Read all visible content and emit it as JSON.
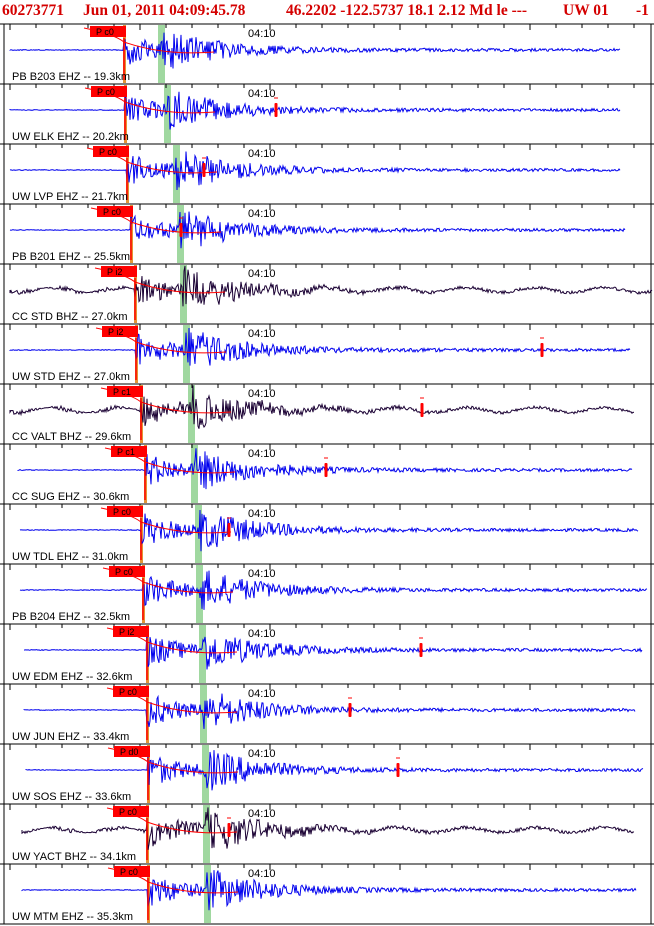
{
  "header": {
    "event_id": "60273771",
    "datetime": "Jun 01, 2011 04:09:45.78",
    "location": "46.2202 -122.5737 18.1 2.12 Md le ---",
    "network": "UW 01",
    "suffix": "-1"
  },
  "time_tick_label": "04:10",
  "colors": {
    "trace_blue": "#0000ee",
    "trace_dark": "#1a0033",
    "header_red": "#d40000",
    "pick_red": "#ff0000",
    "s_window_green": "#8fd18f",
    "p_window_orange": "#e08a1e"
  },
  "chart_data": {
    "type": "line",
    "title": "60273771 Jun 01, 2011 04:09:45.78 46.2202 -122.5737 18.1 2.12 Md le --- UW 01 -1",
    "xlabel": "",
    "ylabel": "",
    "series": [
      {
        "label": "PB B203 EHZ -- 19.3km",
        "pick": "P c0",
        "color": "blue"
      },
      {
        "label": "UW ELK EHZ -- 20.2km",
        "pick": "P c0",
        "color": "blue"
      },
      {
        "label": "UW LVP EHZ -- 21.7km",
        "pick": "P c0",
        "color": "blue"
      },
      {
        "label": "PB B201 EHZ -- 25.5km",
        "pick": "P c0",
        "color": "blue"
      },
      {
        "label": "CC STD BHZ -- 27.0km",
        "pick": "P i2",
        "color": "dark"
      },
      {
        "label": "UW STD EHZ -- 27.0km",
        "pick": "P i2",
        "color": "blue"
      },
      {
        "label": "CC VALT BHZ -- 29.6km",
        "pick": "P c1",
        "color": "dark"
      },
      {
        "label": "CC SUG EHZ -- 30.6km",
        "pick": "P c1",
        "color": "blue"
      },
      {
        "label": "UW TDL EHZ -- 31.0km",
        "pick": "P c0",
        "color": "blue"
      },
      {
        "label": "PB B204 EHZ -- 32.5km",
        "pick": "P c0",
        "color": "blue"
      },
      {
        "label": "UW EDM EHZ -- 32.6km",
        "pick": "P i2",
        "color": "blue"
      },
      {
        "label": "UW JUN EHZ -- 33.4km",
        "pick": "P c0",
        "color": "blue"
      },
      {
        "label": "UW SOS EHZ -- 33.6km",
        "pick": "P d0",
        "color": "blue"
      },
      {
        "label": "UW YACT BHZ -- 34.1km",
        "pick": "P c0",
        "color": "dark"
      },
      {
        "label": "UW MTM EHZ -- 35.3km",
        "pick": "P c0",
        "color": "blue"
      }
    ]
  }
}
